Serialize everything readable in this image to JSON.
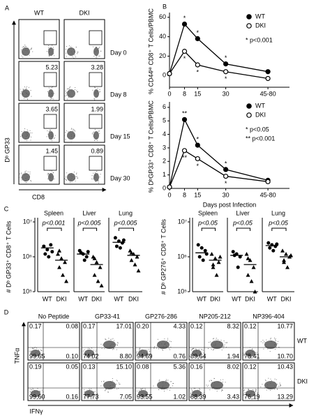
{
  "panel_labels": [
    "A",
    "B",
    "C",
    "D"
  ],
  "panel_a": {
    "columns": [
      "WT",
      "DKI"
    ],
    "y_label": "Dᵇ GP33",
    "x_label": "CD8",
    "rows": [
      {
        "label": "Day 0",
        "values": [
          null,
          null
        ]
      },
      {
        "label": "Day 8",
        "values": [
          "5.23",
          "3.28"
        ]
      },
      {
        "label": "Day 15",
        "values": [
          "3.65",
          "1.99"
        ]
      },
      {
        "label": "Day 30",
        "values": [
          "1.45",
          "0.89"
        ]
      }
    ]
  },
  "chart_data": [
    {
      "type": "line",
      "ylabel": "% CD44ᴴⁱ CD8⁺ T Cells/PBMC",
      "x": [
        0,
        8,
        15,
        30,
        52.5
      ],
      "xlim": [
        0,
        64
      ],
      "xticks": [
        0,
        8,
        15,
        30,
        {
          "value": 52.5,
          "label": "45-80"
        }
      ],
      "ylim": [
        -12,
        62
      ],
      "yticks": [
        0,
        20,
        40,
        60
      ],
      "series": [
        {
          "name": "WT",
          "color": "#000000",
          "marker": "filled",
          "values": [
            2,
            53,
            38,
            12,
            4
          ],
          "annotations": [
            null,
            "*",
            "*",
            "*",
            null
          ]
        },
        {
          "name": "DKI",
          "color": "#000000",
          "marker": "open",
          "values": [
            2,
            25,
            11,
            4,
            -3
          ],
          "annotations": [
            null,
            "*",
            "*",
            "*",
            null
          ]
        }
      ],
      "legend_notes": [
        "* p<0.001"
      ]
    },
    {
      "type": "line",
      "ylabel": "% DᵇGP33⁺ CD8⁺ T Cells/PBMC",
      "xlabel": "Days post Infection",
      "x": [
        0,
        8,
        15,
        30,
        52.5
      ],
      "xlim": [
        0,
        64
      ],
      "xticks": [
        0,
        8,
        15,
        30,
        {
          "value": 52.5,
          "label": "45-80"
        }
      ],
      "ylim": [
        0,
        6.2
      ],
      "yticks": [
        0,
        1,
        2,
        3,
        4,
        5,
        6
      ],
      "series": [
        {
          "name": "WT",
          "color": "#000000",
          "marker": "filled",
          "values": [
            0.1,
            5.1,
            3.2,
            1.4,
            0.6
          ],
          "annotations": [
            null,
            "**",
            "*",
            "*",
            null
          ]
        },
        {
          "name": "DKI",
          "color": "#000000",
          "marker": "open",
          "values": [
            0.1,
            2.8,
            2.2,
            0.9,
            0.5
          ],
          "annotations": [
            null,
            "**",
            "*",
            "*",
            null
          ]
        }
      ],
      "legend_notes": [
        "* p<0.05",
        "** p<0.001"
      ]
    },
    {
      "type": "dot_plot",
      "ylabel": "# Dᵇ GP33⁺ CD8⁺ T Cells",
      "log_y": true,
      "ylim": [
        100000,
        10000000
      ],
      "yticks": [
        {
          "value": 100000,
          "label": "10⁵"
        },
        {
          "value": 1000000,
          "label": "10⁶"
        },
        {
          "value": 10000000,
          "label": "10⁷"
        }
      ],
      "categories": [
        "WT",
        "DKI"
      ],
      "markers": [
        "circle",
        "triangle"
      ],
      "color": "#000000",
      "panels": [
        {
          "title": "Spleen",
          "p_value": "p<0.001",
          "groups": [
            {
              "values": [
                2000000,
                1600000,
                2200000,
                1200000,
                1000000,
                1400000
              ],
              "median": 1800000
            },
            {
              "values": [
                1200000,
                900000,
                700000,
                500000,
                300000,
                200000,
                1500000
              ],
              "median": 800000
            }
          ]
        },
        {
          "title": "Liver",
          "p_value": "p<0.005",
          "groups": [
            {
              "values": [
                1500000,
                1200000,
                1000000,
                1300000,
                800000,
                1400000
              ],
              "median": 1200000
            },
            {
              "values": [
                1000000,
                700000,
                500000,
                300000,
                200000,
                150000,
                900000
              ],
              "median": 600000
            }
          ]
        },
        {
          "title": "Lung",
          "p_value": "p<0.005",
          "groups": [
            {
              "values": [
                3500000,
                2800000,
                2500000,
                2000000,
                1800000,
                3000000
              ],
              "median": 2600000
            },
            {
              "values": [
                1500000,
                1200000,
                1000000,
                800000,
                600000,
                400000,
                1300000
              ],
              "median": 1100000
            }
          ]
        }
      ]
    },
    {
      "type": "dot_plot",
      "ylabel": "# Dᵇ GP276⁺ CD8⁺ T Cells",
      "log_y": true,
      "ylim": [
        100000,
        10000000
      ],
      "yticks": [
        {
          "value": 100000,
          "label": "10⁵"
        },
        {
          "value": 1000000,
          "label": "10⁶"
        },
        {
          "value": 10000000,
          "label": "10⁷"
        }
      ],
      "categories": [
        "WT",
        "DKI"
      ],
      "markers": [
        "circle",
        "triangle"
      ],
      "color": "#000000",
      "panels": [
        {
          "title": "Spleen",
          "p_value": "p<0.05",
          "groups": [
            {
              "values": [
                2200000,
                1800000,
                1500000,
                1000000,
                800000,
                1200000
              ],
              "median": 1300000
            },
            {
              "values": [
                1200000,
                900000,
                700000,
                500000,
                300000,
                1000000,
                600000
              ],
              "median": 800000
            }
          ]
        },
        {
          "title": "Liver",
          "p_value": "p<0.05",
          "groups": [
            {
              "values": [
                1400000,
                1200000,
                1000000,
                1100000,
                500000
              ],
              "median": 1100000
            },
            {
              "values": [
                1200000,
                800000,
                500000,
                300000,
                200000,
                100000,
                900000
              ],
              "median": 600000
            }
          ]
        },
        {
          "title": "Lung",
          "p_value": "p<0.05",
          "groups": [
            {
              "values": [
                2500000,
                2200000,
                2000000,
                1800000,
                1500000,
                2300000
              ],
              "median": 2100000
            },
            {
              "values": [
                1500000,
                1200000,
                1000000,
                800000,
                500000,
                1100000,
                700000
              ],
              "median": 1000000
            }
          ]
        }
      ]
    }
  ],
  "panel_d": {
    "columns": [
      "No Peptide",
      "GP33-41",
      "GP276-286",
      "NP205-212",
      "NP396-404"
    ],
    "y_label": "TNFα",
    "x_label": "IFNγ",
    "rows": [
      {
        "label": "WT",
        "cells": [
          [
            "0.17",
            "0.08",
            "99.65",
            "0.10"
          ],
          [
            "0.17",
            "17.01",
            "74.02",
            "8.80"
          ],
          [
            "0.20",
            "4.33",
            "94.69",
            "0.76"
          ],
          [
            "0.12",
            "8.32",
            "89.64",
            "1.94"
          ],
          [
            "0.12",
            "10.77",
            "78.41",
            "10.70"
          ]
        ]
      },
      {
        "label": "DKI",
        "cells": [
          [
            "0.19",
            "0.05",
            "99.60",
            "0.16"
          ],
          [
            "0.13",
            "15.10",
            "77.73",
            "7.05"
          ],
          [
            "0.08",
            "5.36",
            "93.55",
            "1.02"
          ],
          [
            "0.16",
            "8.02",
            "88.39",
            "3.43"
          ],
          [
            "0.12",
            "10.43",
            "76.19",
            "13.29"
          ]
        ]
      }
    ]
  }
}
